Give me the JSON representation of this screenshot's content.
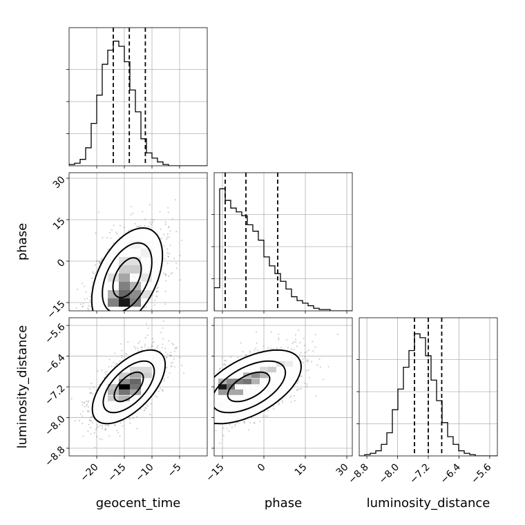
{
  "chart_data": {
    "type": "corner",
    "parameters": [
      "geocent_time",
      "phase",
      "luminosity_distance"
    ],
    "xlabels": [
      "geocent_time",
      "phase",
      "luminosity_distance"
    ],
    "ylabels": [
      "",
      "phase",
      "luminosity_distance"
    ],
    "grid": true,
    "ranges": {
      "geocent_time": [
        -25,
        0
      ],
      "phase": [
        -18,
        32
      ],
      "luminosity_distance": [
        -9.0,
        -5.4
      ]
    },
    "ticks": {
      "geocent_time": [
        -20,
        -15,
        -10,
        -5
      ],
      "phase": [
        -15,
        0,
        15,
        30
      ],
      "luminosity_distance": [
        -8.8,
        -8.0,
        -7.2,
        -6.4,
        -5.6
      ]
    },
    "tick_labels": {
      "geocent_time": [
        "−20",
        "−15",
        "−10",
        "−5"
      ],
      "phase": [
        "−15",
        "0",
        "15",
        "30"
      ],
      "luminosity_distance": [
        "−8.8",
        "−8.0",
        "−7.2",
        "−6.4",
        "−5.6"
      ]
    },
    "quantiles": {
      "geocent_time": [
        -17.0,
        -14.1,
        -11.2
      ],
      "phase": [
        -14.0,
        -6.5,
        5.0
      ],
      "luminosity_distance": [
        -7.56,
        -7.2,
        -6.85
      ]
    },
    "histograms": {
      "geocent_time": {
        "edges_start": -25,
        "bin_width": 1.0,
        "counts": [
          0.01,
          0.02,
          0.05,
          0.14,
          0.33,
          0.55,
          0.79,
          0.9,
          0.97,
          0.93,
          0.81,
          0.59,
          0.42,
          0.21,
          0.1,
          0.06,
          0.03,
          0.01,
          0,
          0,
          0,
          0,
          0,
          0,
          0
        ]
      },
      "phase": {
        "edges_start": -18,
        "bin_width": 2.0,
        "counts": [
          0.18,
          0.95,
          0.86,
          0.8,
          0.77,
          0.74,
          0.67,
          0.62,
          0.55,
          0.42,
          0.35,
          0.29,
          0.23,
          0.17,
          0.11,
          0.08,
          0.06,
          0.04,
          0.02,
          0.01,
          0.01,
          0,
          0,
          0,
          0
        ]
      },
      "luminosity_distance": {
        "edges_start": -9.0,
        "bin_width": 0.144,
        "counts": [
          0,
          0.01,
          0.02,
          0.04,
          0.09,
          0.18,
          0.36,
          0.52,
          0.69,
          0.82,
          0.95,
          0.92,
          0.78,
          0.59,
          0.43,
          0.26,
          0.15,
          0.09,
          0.04,
          0.02,
          0.01,
          0,
          0,
          0,
          0
        ]
      }
    },
    "pairs": [
      {
        "x": "geocent_time",
        "y": "phase",
        "mean": [
          -14.5,
          -6.0
        ],
        "sd": [
          3.2,
          9.0
        ],
        "rho": 0.45,
        "seed": 11,
        "density_cells": [
          {
            "x": -15,
            "y": -15,
            "v": 0.9
          },
          {
            "x": -15,
            "y": -12,
            "v": 0.6
          },
          {
            "x": -15,
            "y": -9,
            "v": 0.5
          },
          {
            "x": -15,
            "y": -6,
            "v": 0.35
          },
          {
            "x": -13,
            "y": -12,
            "v": 0.45
          },
          {
            "x": -13,
            "y": -9,
            "v": 0.3
          },
          {
            "x": -17,
            "y": -12,
            "v": 0.3
          },
          {
            "x": -13,
            "y": -15,
            "v": 0.5
          },
          {
            "x": -13,
            "y": -3,
            "v": 0.2
          },
          {
            "x": -15,
            "y": -3,
            "v": 0.2
          },
          {
            "x": -15,
            "y": 0,
            "v": 0.12
          },
          {
            "x": -13,
            "y": 0,
            "v": 0.12
          },
          {
            "x": -11,
            "y": 3,
            "v": 0.06
          },
          {
            "x": -13,
            "y": 6,
            "v": 0.05
          },
          {
            "x": -11,
            "y": -6,
            "v": 0.1
          },
          {
            "x": -17,
            "y": -15,
            "v": 0.5
          },
          {
            "x": -11,
            "y": -12,
            "v": 0.12
          },
          {
            "x": -17,
            "y": -6,
            "v": 0.12
          }
        ]
      },
      {
        "x": "geocent_time",
        "y": "luminosity_distance",
        "mean": [
          -14.2,
          -7.2
        ],
        "sd": [
          3.3,
          0.48
        ],
        "rho": 0.6,
        "seed": 23,
        "density_cells": [
          {
            "x": -15,
            "y": -7.2,
            "v": 1.0
          },
          {
            "x": -15,
            "y": -7.34,
            "v": 0.55
          },
          {
            "x": -13,
            "y": -7.06,
            "v": 0.6
          },
          {
            "x": -13,
            "y": -7.2,
            "v": 0.55
          },
          {
            "x": -15,
            "y": -7.06,
            "v": 0.45
          },
          {
            "x": -13,
            "y": -6.9,
            "v": 0.35
          },
          {
            "x": -17,
            "y": -7.34,
            "v": 0.3
          },
          {
            "x": -15,
            "y": -7.5,
            "v": 0.3
          },
          {
            "x": -13,
            "y": -7.34,
            "v": 0.35
          },
          {
            "x": -11,
            "y": -6.9,
            "v": 0.2
          },
          {
            "x": -11,
            "y": -6.75,
            "v": 0.15
          },
          {
            "x": -17,
            "y": -7.2,
            "v": 0.25
          },
          {
            "x": -13,
            "y": -6.75,
            "v": 0.15
          },
          {
            "x": -17,
            "y": -7.5,
            "v": 0.2
          },
          {
            "x": -15,
            "y": -6.9,
            "v": 0.2
          }
        ]
      },
      {
        "x": "phase",
        "y": "luminosity_distance",
        "mean": [
          -5.5,
          -7.2
        ],
        "sd": [
          9.5,
          0.48
        ],
        "rho": 0.55,
        "seed": 37,
        "density_cells": [
          {
            "x": -15,
            "y": -7.2,
            "v": 0.9
          },
          {
            "x": -12,
            "y": -7.2,
            "v": 0.55
          },
          {
            "x": -9,
            "y": -7.06,
            "v": 0.5
          },
          {
            "x": -6,
            "y": -7.06,
            "v": 0.55
          },
          {
            "x": -3,
            "y": -6.9,
            "v": 0.45
          },
          {
            "x": -9,
            "y": -7.34,
            "v": 0.35
          },
          {
            "x": -15,
            "y": -7.34,
            "v": 0.4
          },
          {
            "x": -12,
            "y": -7.06,
            "v": 0.45
          },
          {
            "x": 0,
            "y": -6.9,
            "v": 0.3
          },
          {
            "x": 3,
            "y": -6.75,
            "v": 0.2
          },
          {
            "x": 6,
            "y": -6.6,
            "v": 0.12
          },
          {
            "x": -6,
            "y": -6.9,
            "v": 0.3
          },
          {
            "x": -12,
            "y": -7.34,
            "v": 0.35
          },
          {
            "x": 0,
            "y": -6.75,
            "v": 0.15
          },
          {
            "x": -3,
            "y": -7.06,
            "v": 0.3
          },
          {
            "x": 9,
            "y": -6.6,
            "v": 0.08
          },
          {
            "x": -15,
            "y": -7.06,
            "v": 0.3
          }
        ]
      }
    ]
  }
}
